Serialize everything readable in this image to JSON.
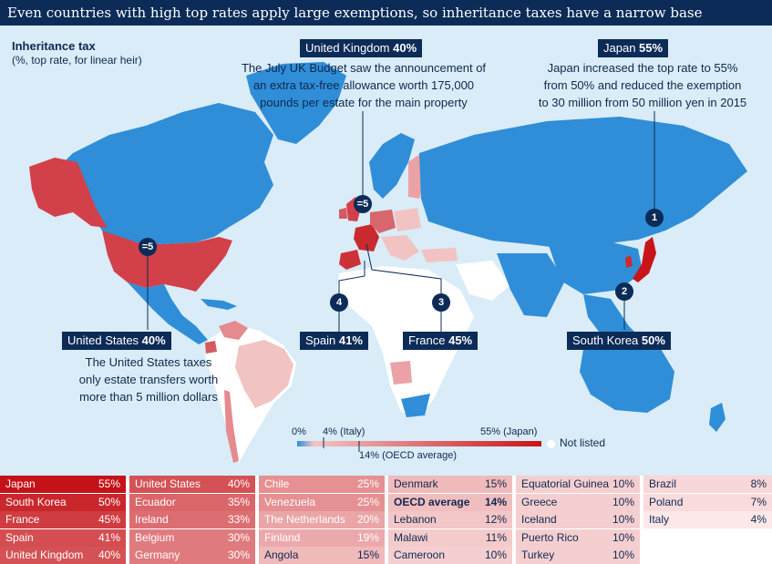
{
  "header": {
    "title": "Even countries with high top rates apply large exemptions, so inheritance taxes have a narrow base"
  },
  "legend": {
    "title": "Inheritance tax",
    "subtitle": "(%, top rate, for linear heir)",
    "scale_min": "0%",
    "scale_italy": "4% (Italy)",
    "scale_max": "55% (Japan)",
    "scale_oecd": "14% (OECD average)",
    "not_listed": "Not listed"
  },
  "callouts": {
    "uk": {
      "name": "United Kingdom",
      "value": "40%",
      "rank": "=5",
      "lines": [
        "The July UK Budget saw the announcement of",
        "an extra tax-free allowance worth 175,000",
        "pounds per estate for the main property"
      ]
    },
    "japan": {
      "name": "Japan",
      "value": "55%",
      "rank": "1",
      "lines": [
        "Japan increased the top rate to 55%",
        "from 50% and reduced the exemption",
        "to 30 million from 50 million yen in 2015"
      ]
    },
    "us": {
      "name": "United States",
      "value": "40%",
      "rank": "=5",
      "lines": [
        "The United States taxes",
        "only estate transfers worth",
        "more than 5 million dollars"
      ]
    },
    "spain": {
      "name": "Spain",
      "value": "41%",
      "rank": "4"
    },
    "france": {
      "name": "France",
      "value": "45%",
      "rank": "3"
    },
    "south_korea": {
      "name": "South Korea",
      "value": "50%",
      "rank": "2"
    }
  },
  "colors": {
    "header_bg": "#0c2b57",
    "ocean": "#d9ecf7",
    "not_listed": "#ffffff",
    "unlisted_blue": "#2f8ed7",
    "scale_low": "#f2c3c3",
    "scale_high": "#c81419"
  },
  "table": {
    "columns": [
      [
        {
          "country": "Japan",
          "value": "55%",
          "rate": 55
        },
        {
          "country": "South Korea",
          "value": "50%",
          "rate": 50
        },
        {
          "country": "France",
          "value": "45%",
          "rate": 45
        },
        {
          "country": "Spain",
          "value": "41%",
          "rate": 41
        },
        {
          "country": "United Kingdom",
          "value": "40%",
          "rate": 40
        }
      ],
      [
        {
          "country": "United States",
          "value": "40%",
          "rate": 40
        },
        {
          "country": "Ecuador",
          "value": "35%",
          "rate": 35
        },
        {
          "country": "Ireland",
          "value": "33%",
          "rate": 33
        },
        {
          "country": "Belgium",
          "value": "30%",
          "rate": 30
        },
        {
          "country": "Germany",
          "value": "30%",
          "rate": 30
        }
      ],
      [
        {
          "country": "Chile",
          "value": "25%",
          "rate": 25
        },
        {
          "country": "Venezuela",
          "value": "25%",
          "rate": 25
        },
        {
          "country": "The Netherlands",
          "value": "20%",
          "rate": 20
        },
        {
          "country": "Finland",
          "value": "19%",
          "rate": 19
        },
        {
          "country": "Angola",
          "value": "15%",
          "rate": 15
        }
      ],
      [
        {
          "country": "Denmark",
          "value": "15%",
          "rate": 15
        },
        {
          "country": "OECD average",
          "value": "14%",
          "rate": 14,
          "bold": true
        },
        {
          "country": "Lebanon",
          "value": "12%",
          "rate": 12
        },
        {
          "country": "Malawi",
          "value": "11%",
          "rate": 11
        },
        {
          "country": "Cameroon",
          "value": "10%",
          "rate": 10
        }
      ],
      [
        {
          "country": "Equatorial Guinea",
          "value": "10%",
          "rate": 10
        },
        {
          "country": "Greece",
          "value": "10%",
          "rate": 10
        },
        {
          "country": "Iceland",
          "value": "10%",
          "rate": 10
        },
        {
          "country": "Puerto Rico",
          "value": "10%",
          "rate": 10
        },
        {
          "country": "Turkey",
          "value": "10%",
          "rate": 10
        }
      ],
      [
        {
          "country": "Brazil",
          "value": "8%",
          "rate": 8
        },
        {
          "country": "Poland",
          "value": "7%",
          "rate": 7
        },
        {
          "country": "Italy",
          "value": "4%",
          "rate": 4
        }
      ]
    ]
  }
}
